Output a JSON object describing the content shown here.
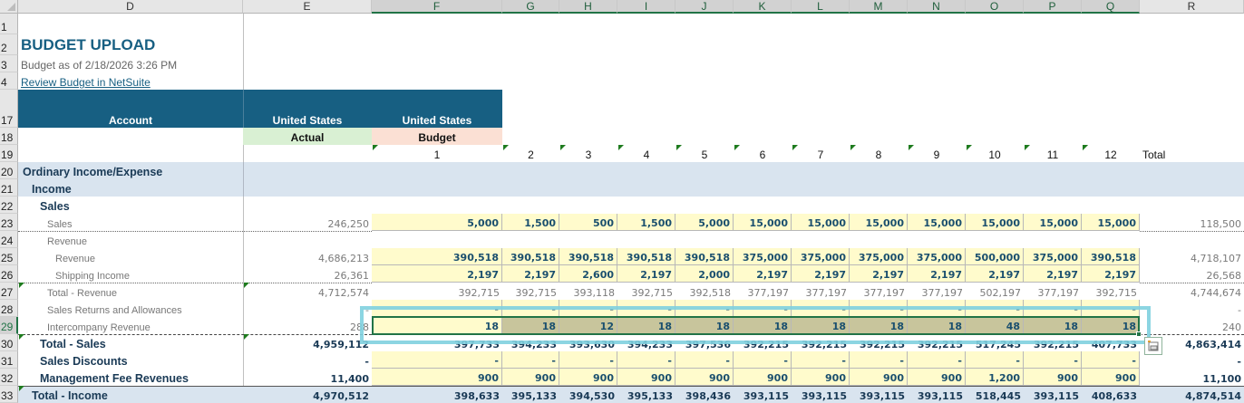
{
  "columns": [
    "D",
    "E",
    "F",
    "G",
    "H",
    "I",
    "J",
    "K",
    "L",
    "M",
    "N",
    "O",
    "P",
    "Q",
    "R"
  ],
  "row_numbers": [
    "1",
    "2",
    "3",
    "4",
    "17",
    "18",
    "19",
    "20",
    "21",
    "22",
    "23",
    "24",
    "25",
    "26",
    "27",
    "28",
    "29",
    "30",
    "31",
    "32",
    "33"
  ],
  "title": {
    "heading": "BUDGET UPLOAD",
    "subtitle": "Budget as of 2/18/2026 3:26 PM",
    "link": "Review Budget in NetSuite"
  },
  "header": {
    "account": "Account",
    "actual_subsidiary": "United States",
    "budget_subsidiary": "United States",
    "actual_label": "Actual",
    "budget_label": "Budget",
    "periods": [
      "1",
      "2",
      "3",
      "4",
      "5",
      "6",
      "7",
      "8",
      "9",
      "10",
      "11",
      "12"
    ],
    "total": "Total"
  },
  "colors": {
    "header_bg": "#175f82",
    "section_bg": "#d9e4ef",
    "input_bg": "#fffbcc",
    "selected_bg": "#c8c59c",
    "actual_bg": "#d9f0d3",
    "budget_bg": "#fbe0d4",
    "selection_border": "#217346",
    "copy_marquee": "#7fd0df"
  },
  "rows": [
    {
      "row": "20",
      "label": "Ordinary Income/Expense"
    },
    {
      "row": "21",
      "label": "Income"
    },
    {
      "row": "22",
      "label": "Sales"
    },
    {
      "row": "23",
      "label": "Sales",
      "actual": "246,250",
      "months": [
        "5,000",
        "1,500",
        "500",
        "1,500",
        "5,000",
        "15,000",
        "15,000",
        "15,000",
        "15,000",
        "15,000",
        "15,000",
        "15,000"
      ],
      "total": "118,500"
    },
    {
      "row": "24",
      "label": "Revenue"
    },
    {
      "row": "25",
      "label": "Revenue",
      "actual": "4,686,213",
      "months": [
        "390,518",
        "390,518",
        "390,518",
        "390,518",
        "390,518",
        "375,000",
        "375,000",
        "375,000",
        "375,000",
        "500,000",
        "375,000",
        "390,518"
      ],
      "total": "4,718,107"
    },
    {
      "row": "26",
      "label": "Shipping Income",
      "actual": "26,361",
      "months": [
        "2,197",
        "2,197",
        "2,600",
        "2,197",
        "2,000",
        "2,197",
        "2,197",
        "2,197",
        "2,197",
        "2,197",
        "2,197",
        "2,197"
      ],
      "total": "26,568"
    },
    {
      "row": "27",
      "label": "Total - Revenue",
      "actual": "4,712,574",
      "months": [
        "392,715",
        "392,715",
        "393,118",
        "392,715",
        "392,518",
        "377,197",
        "377,197",
        "377,197",
        "377,197",
        "502,197",
        "377,197",
        "392,715"
      ],
      "total": "4,744,674"
    },
    {
      "row": "28",
      "label": "Sales Returns and Allowances",
      "actual": "-",
      "months": [
        "-",
        "-",
        "-",
        "-",
        "-",
        "-",
        "-",
        "-",
        "-",
        "-",
        "-",
        "-"
      ],
      "total": "-"
    },
    {
      "row": "29",
      "label": "Intercompany Revenue",
      "actual": "288",
      "months": [
        "18",
        "18",
        "12",
        "18",
        "18",
        "18",
        "18",
        "18",
        "18",
        "48",
        "18",
        "18"
      ],
      "total": "240"
    },
    {
      "row": "30",
      "label": "Total - Sales",
      "actual": "4,959,112",
      "months": [
        "397,733",
        "394,233",
        "393,630",
        "394,233",
        "397,536",
        "392,215",
        "392,215",
        "392,215",
        "392,215",
        "517,245",
        "392,215",
        "407,733"
      ],
      "total": "4,863,414"
    },
    {
      "row": "31",
      "label": "Sales Discounts",
      "actual": "-",
      "months": [
        "-",
        "-",
        "-",
        "-",
        "-",
        "-",
        "-",
        "-",
        "-",
        "-",
        "-",
        "-"
      ],
      "total": "-"
    },
    {
      "row": "32",
      "label": "Management Fee Revenues",
      "actual": "11,400",
      "months": [
        "900",
        "900",
        "900",
        "900",
        "900",
        "900",
        "900",
        "900",
        "900",
        "1,200",
        "900",
        "900"
      ],
      "total": "11,100"
    },
    {
      "row": "33",
      "label": "Total - Income",
      "actual": "4,970,512",
      "months": [
        "398,633",
        "395,133",
        "394,530",
        "395,133",
        "398,436",
        "393,115",
        "393,115",
        "393,115",
        "393,115",
        "518,445",
        "393,115",
        "408,633"
      ],
      "total": "4,874,514"
    }
  ],
  "selection": {
    "range": "F29:Q29",
    "active_cell": "F29"
  },
  "icons": {
    "paste_options": "paste-options-icon"
  }
}
